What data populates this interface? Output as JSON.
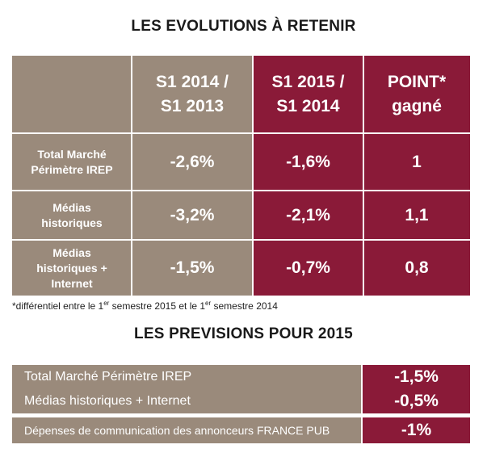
{
  "evolutions": {
    "title": "LES EVOLUTIONS À RETENIR",
    "columns": [
      {
        "line1": "S1 2014 /",
        "line2": "S1 2013"
      },
      {
        "line1": "S1 2015 /",
        "line2": "S1 2014"
      },
      {
        "line1": "POINT*",
        "line2": "gagné"
      }
    ],
    "rows": [
      {
        "label_lines": [
          "Total Marché",
          "Périmètre IREP"
        ],
        "values": [
          "-2,6%",
          "-1,6%",
          "1"
        ]
      },
      {
        "label_lines": [
          "Médias",
          "historiques"
        ],
        "values": [
          "-3,2%",
          "-2,1%",
          "1,1"
        ]
      },
      {
        "label_lines": [
          "Médias",
          "historiques +",
          "Internet"
        ],
        "values": [
          "-1,5%",
          "-0,7%",
          "0,8"
        ]
      }
    ],
    "footnote": {
      "part1": "*différentiel entre le 1",
      "sup1": "er",
      "part2": " semestre 2015 et le 1",
      "sup2": "er",
      "part3": " semestre 2014"
    }
  },
  "previsions": {
    "title": "LES PREVISIONS POUR 2015",
    "rows": [
      {
        "label": "Total Marché Périmètre IREP",
        "value": "-1,5%"
      },
      {
        "label": "Médias historiques + Internet",
        "value": "-0,5%"
      },
      {
        "label": "Dépenses de communication des annonceurs FRANCE PUB",
        "value": "-1%"
      }
    ]
  },
  "colors": {
    "tan": "#9a8a7b",
    "wine": "#8a1a38"
  }
}
